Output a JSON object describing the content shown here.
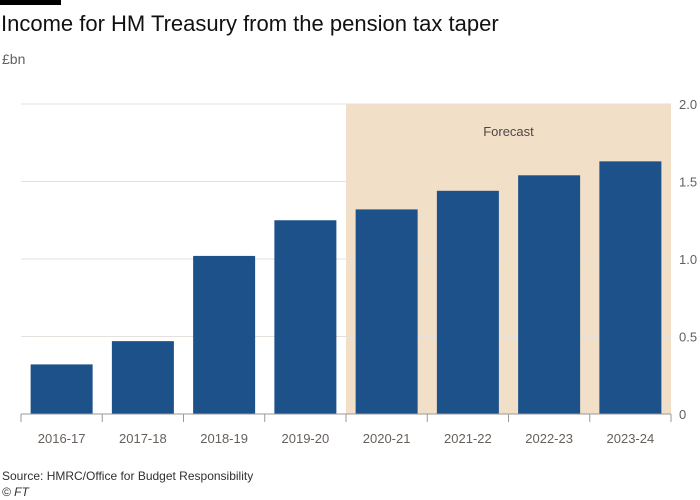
{
  "title": "Income for HM Treasury from the pension tax taper",
  "subtitle": "£bn",
  "source": "Source: HMRC/Office for Budget Responsibility",
  "copyright": "© FT",
  "colors": {
    "bar": "#1d5189",
    "forecast_band": "#f2dfc8",
    "grid": "#e6e0da",
    "axis": "#999999"
  },
  "chart_data": {
    "type": "bar",
    "title": "Income for HM Treasury from the pension tax taper",
    "ylabel": "£bn",
    "categories": [
      "2016-17",
      "2017-18",
      "2018-19",
      "2019-20",
      "2020-21",
      "2021-22",
      "2022-23",
      "2023-24"
    ],
    "values": [
      0.32,
      0.47,
      1.02,
      1.25,
      1.32,
      1.44,
      1.54,
      1.63
    ],
    "ylim": [
      0,
      2.0
    ],
    "y_ticks": [
      0,
      0.5,
      1.0,
      1.5,
      2.0
    ],
    "y_tick_labels": [
      "0",
      "0.5",
      "1.0",
      "1.5",
      "2.0"
    ],
    "y_axis_position": "right",
    "grid": true,
    "annotations": [
      {
        "label": "Forecast",
        "from_category": "2020-21",
        "to_category": "2023-24"
      }
    ]
  }
}
